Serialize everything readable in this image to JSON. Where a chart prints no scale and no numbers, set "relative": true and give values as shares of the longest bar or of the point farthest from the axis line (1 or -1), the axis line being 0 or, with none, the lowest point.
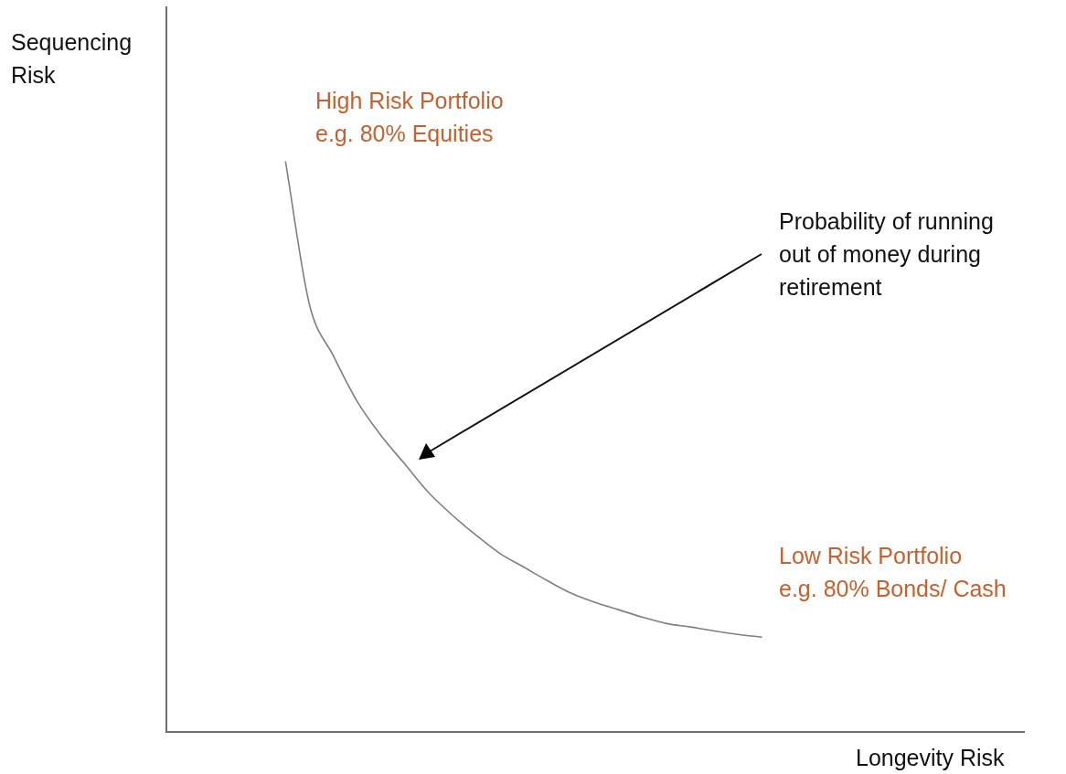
{
  "chart_data": {
    "type": "line",
    "relative": true,
    "xlabel": "Longevity Risk",
    "ylabel": "Sequencing\nRisk",
    "tick_labels": false,
    "marker": "none",
    "line_style": "solid",
    "categories": [
      null,
      null,
      null,
      null,
      null,
      null,
      null,
      null,
      null,
      null,
      null,
      null,
      null,
      null,
      null,
      null,
      null,
      null,
      null,
      null,
      null,
      null,
      null,
      null,
      null,
      null,
      null,
      null,
      null,
      null,
      null,
      null,
      null,
      null,
      null,
      null,
      null
    ],
    "series": [
      {
        "color": "#7f7f7f",
        "values": [
          null,
          null,
          null,
          null,
          null,
          1,
          0.75,
          0.66,
          0.58,
          0.52,
          0.47,
          0.42,
          0.38,
          0.345,
          0.313,
          0.289,
          0.265,
          0.243,
          0.227,
          0.214,
          0.201,
          0.19,
          0.184,
          0.177,
          0.171,
          0.166,
          null,
          null,
          null,
          null,
          null,
          null,
          null,
          null,
          null,
          null,
          null
        ]
      }
    ],
    "annotations": [
      "High Risk Portfolio\ne.g. 80% Equities",
      "Probability of running\nout of money during\nretirement",
      "Low Risk Portfolio\ne.g. 80% Bonds/ Cash"
    ]
  }
}
